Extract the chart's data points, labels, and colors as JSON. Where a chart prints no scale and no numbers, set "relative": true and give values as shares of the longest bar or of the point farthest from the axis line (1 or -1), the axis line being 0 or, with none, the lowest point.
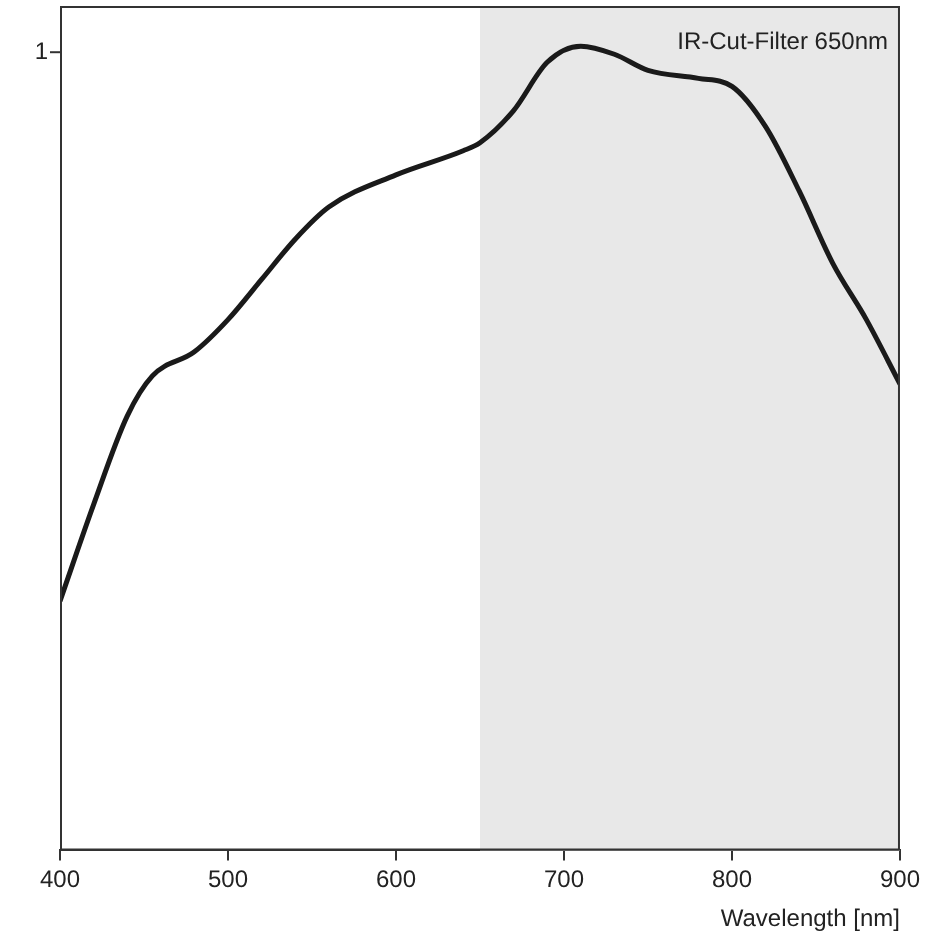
{
  "chart_data": {
    "type": "line",
    "xlabel": "Wavelength [nm]",
    "relative": true,
    "xlim": [
      400,
      900
    ],
    "xticks": [
      400,
      500,
      600,
      700,
      800,
      900
    ],
    "grid": false,
    "legend": false,
    "marker": "none",
    "line_style": "solid",
    "annotations": [
      "1"
    ],
    "bands": [
      {
        "axis": "x",
        "from": 650,
        "to": 900,
        "label": "IR-Cut-Filter 650nm",
        "color": "#e8e8e8"
      }
    ],
    "series": [
      {
        "color": "#1a1a1a",
        "x": [
          400,
          420,
          440,
          455,
          480,
          500,
          520,
          540,
          560,
          600,
          640,
          650,
          670,
          690,
          710,
          730,
          750,
          780,
          800,
          820,
          840,
          860,
          880,
          900
        ],
        "values": [
          0.31,
          0.43,
          0.54,
          0.59,
          0.62,
          0.66,
          0.71,
          0.76,
          0.8,
          0.84,
          0.87,
          0.88,
          0.92,
          0.98,
          1.0,
          0.99,
          0.97,
          0.96,
          0.95,
          0.9,
          0.82,
          0.73,
          0.66,
          0.58
        ]
      }
    ]
  }
}
